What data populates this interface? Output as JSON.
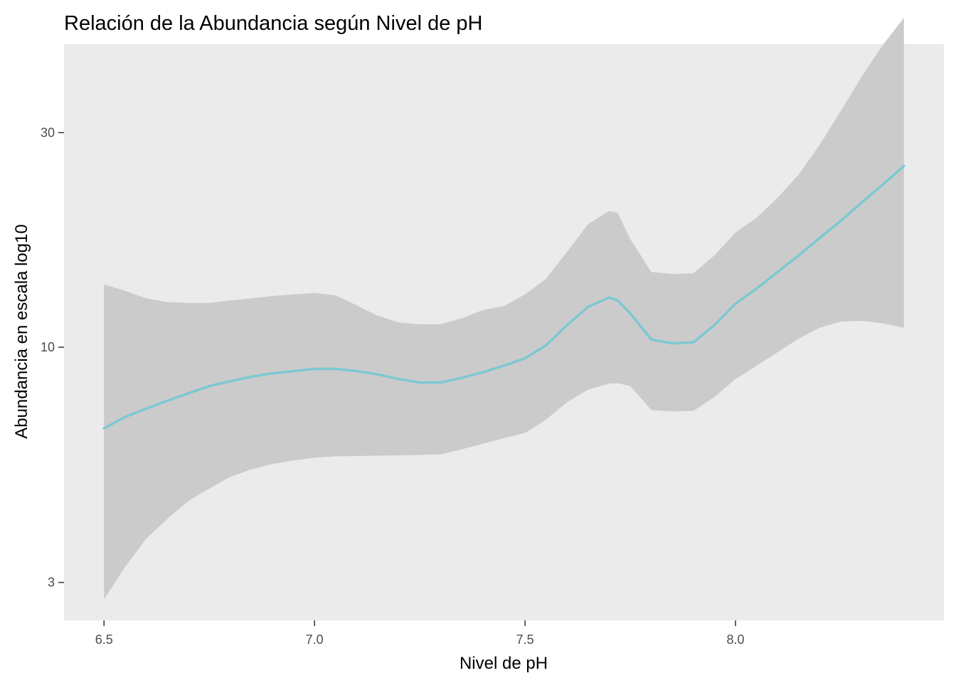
{
  "chart_data": {
    "type": "line",
    "title": "Relación de la Abundancia según Nivel de pH",
    "xlabel": "Nivel de pH",
    "ylabel": "Abundancia en escala log10",
    "x_scale": "linear",
    "y_scale": "log10",
    "xlim": [
      6.405,
      8.495
    ],
    "ylim": [
      2.47,
      47.2
    ],
    "x_ticks": [
      6.5,
      7.0,
      7.5,
      8.0
    ],
    "x_tick_labels": [
      "6.5",
      "7.0",
      "7.5",
      "8.0"
    ],
    "y_ticks": [
      3,
      10,
      30
    ],
    "y_tick_labels": [
      "3",
      "10",
      "30"
    ],
    "grid": false,
    "legend": "none",
    "colors": {
      "panel_background": "#ebebeb",
      "ribbon": "#cbcbcb",
      "line": "#7cc8d2"
    },
    "series": [
      {
        "x": [
          6.5,
          6.55,
          6.6,
          6.65,
          6.7,
          6.75,
          6.8,
          6.85,
          6.9,
          6.95,
          7.0,
          7.05,
          7.1,
          7.15,
          7.2,
          7.25,
          7.3,
          7.35,
          7.4,
          7.45,
          7.5,
          7.55,
          7.6,
          7.65,
          7.7,
          7.72,
          7.75,
          7.8,
          7.85,
          7.9,
          7.95,
          8.0,
          8.05,
          8.1,
          8.15,
          8.2,
          8.25,
          8.3,
          8.35,
          8.4
        ],
        "y": [
          6.6,
          7.0,
          7.3,
          7.6,
          7.9,
          8.2,
          8.4,
          8.6,
          8.75,
          8.85,
          8.95,
          8.95,
          8.85,
          8.7,
          8.5,
          8.35,
          8.35,
          8.55,
          8.8,
          9.1,
          9.45,
          10.1,
          11.2,
          12.3,
          12.9,
          12.7,
          11.9,
          10.4,
          10.2,
          10.25,
          11.2,
          12.5,
          13.5,
          14.7,
          16.0,
          17.5,
          19.1,
          21.0,
          23.0,
          25.3
        ],
        "ymin": [
          2.75,
          3.25,
          3.75,
          4.15,
          4.55,
          4.85,
          5.15,
          5.35,
          5.5,
          5.6,
          5.68,
          5.72,
          5.73,
          5.74,
          5.75,
          5.76,
          5.78,
          5.93,
          6.1,
          6.28,
          6.45,
          6.9,
          7.55,
          8.05,
          8.3,
          8.32,
          8.2,
          7.25,
          7.2,
          7.22,
          7.75,
          8.5,
          9.1,
          9.75,
          10.45,
          11.05,
          11.4,
          11.45,
          11.3,
          11.05
        ],
        "ymax": [
          13.8,
          13.35,
          12.85,
          12.6,
          12.55,
          12.55,
          12.7,
          12.85,
          13.0,
          13.1,
          13.2,
          13.05,
          12.4,
          11.75,
          11.35,
          11.25,
          11.25,
          11.6,
          12.1,
          12.35,
          13.1,
          14.2,
          16.3,
          18.8,
          20.1,
          19.9,
          17.4,
          14.7,
          14.55,
          14.6,
          16.0,
          18.0,
          19.4,
          21.5,
          24.2,
          28.2,
          33.5,
          40.0,
          47.0,
          54.0
        ]
      }
    ]
  }
}
